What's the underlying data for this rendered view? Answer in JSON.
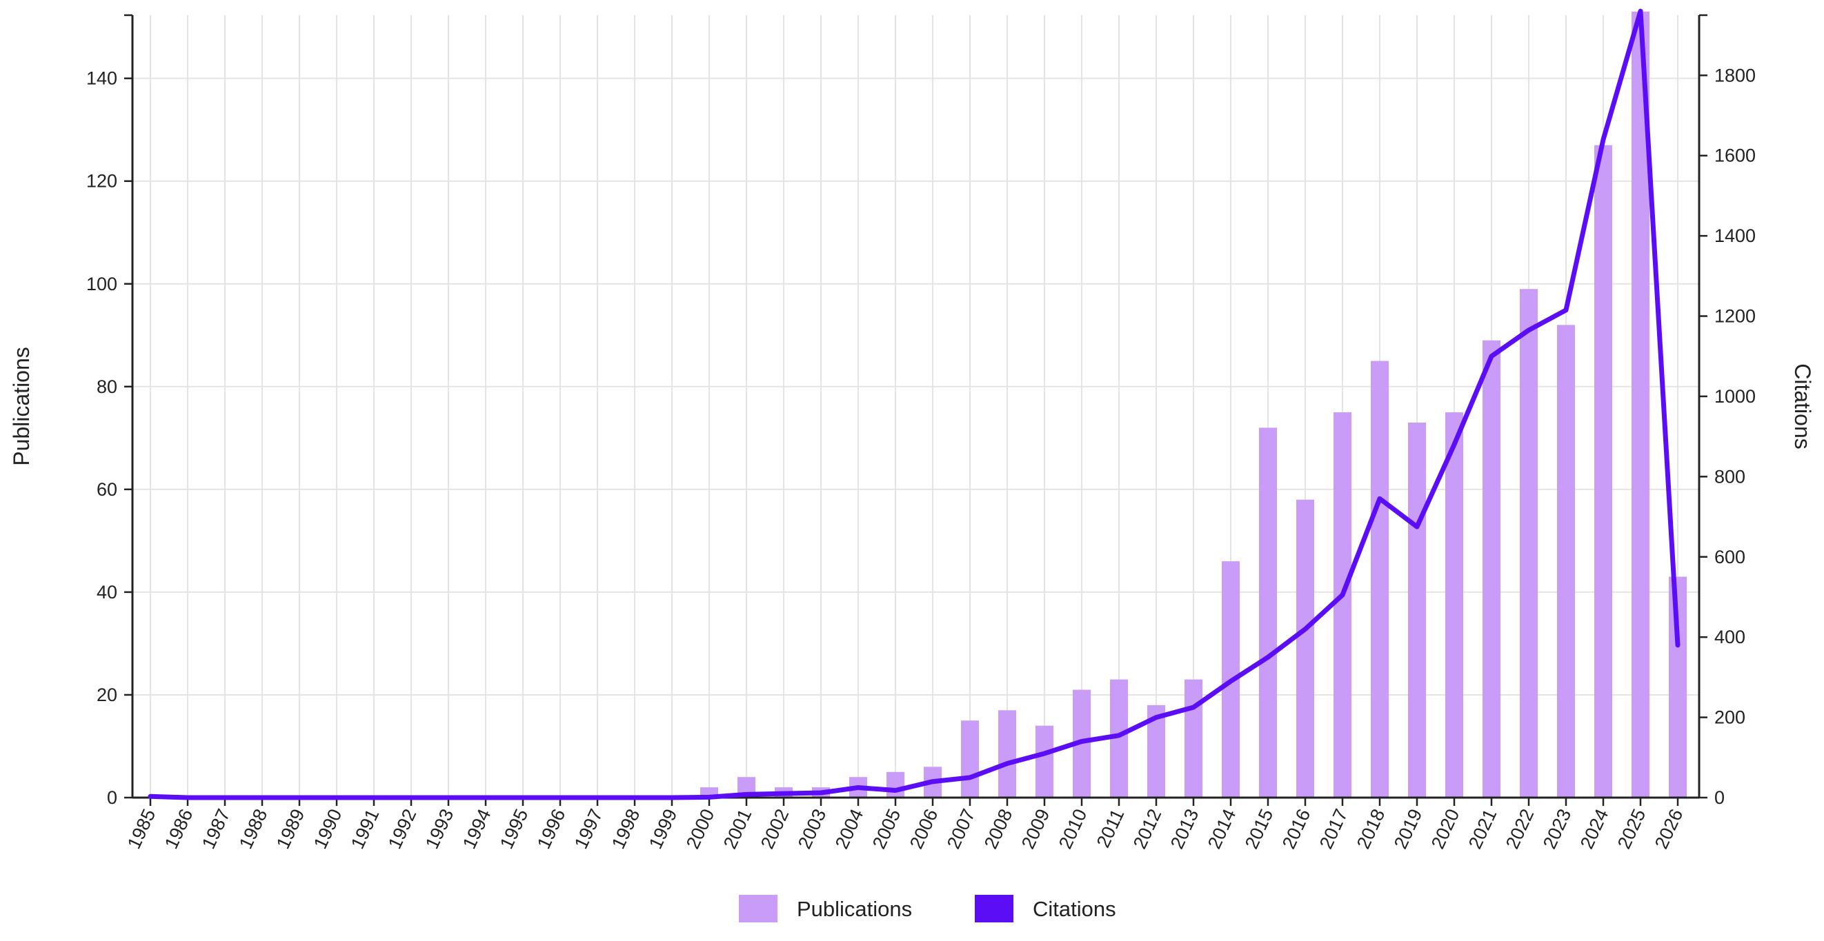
{
  "chart_data": {
    "type": "bar",
    "categories": [
      "1985",
      "1986",
      "1987",
      "1988",
      "1989",
      "1990",
      "1991",
      "1992",
      "1993",
      "1994",
      "1995",
      "1996",
      "1997",
      "1998",
      "1999",
      "2000",
      "2001",
      "2002",
      "2003",
      "2004",
      "2005",
      "2006",
      "2007",
      "2008",
      "2009",
      "2010",
      "2011",
      "2012",
      "2013",
      "2014",
      "2015",
      "2016",
      "2017",
      "2018",
      "2019",
      "2020",
      "2021",
      "2022",
      "2023",
      "2024",
      "2025",
      "2026"
    ],
    "series": [
      {
        "name": "Publications",
        "type": "bar",
        "axis": "left",
        "color": "#c89cf7",
        "values": [
          0,
          0,
          0,
          0,
          0,
          0,
          0,
          0,
          0,
          0,
          0,
          0,
          0,
          0,
          0,
          2,
          4,
          2,
          2,
          4,
          5,
          6,
          15,
          17,
          14,
          21,
          23,
          18,
          23,
          46,
          72,
          58,
          75,
          85,
          73,
          75,
          89,
          99,
          92,
          127,
          153,
          43
        ]
      },
      {
        "name": "Citations",
        "type": "line",
        "axis": "right",
        "color": "#5b0ef5",
        "values": [
          3,
          0,
          0,
          0,
          0,
          0,
          0,
          0,
          0,
          0,
          0,
          0,
          0,
          0,
          0,
          1,
          8,
          10,
          12,
          25,
          18,
          40,
          50,
          85,
          110,
          140,
          155,
          200,
          225,
          290,
          350,
          420,
          505,
          745,
          675,
          880,
          1100,
          1165,
          1215,
          1640,
          1960,
          380
        ]
      }
    ],
    "xlabel": "",
    "ylabel": "Publications",
    "y2label": "Citations",
    "ylim": [
      0,
      152.3
    ],
    "y2lim": [
      0,
      1950
    ],
    "yticks": [
      0,
      20,
      40,
      60,
      80,
      100,
      120,
      140
    ],
    "y2ticks": [
      0,
      200,
      400,
      600,
      800,
      1000,
      1200,
      1400,
      1600,
      1800
    ],
    "grid": true,
    "legend": {
      "position": "bottom-center",
      "entries": [
        "Publications",
        "Citations"
      ]
    }
  }
}
